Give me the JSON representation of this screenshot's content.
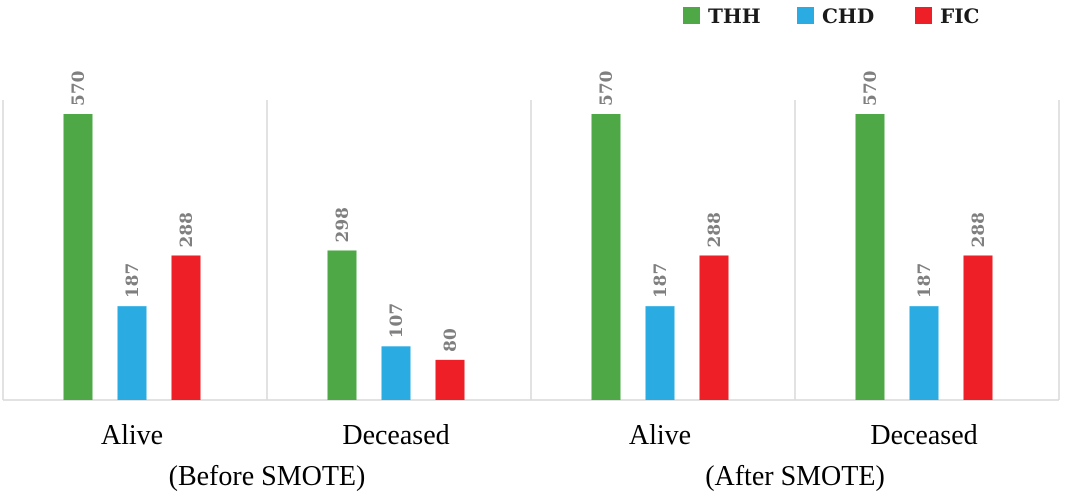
{
  "chart_data": {
    "type": "bar",
    "groups": [
      "(Before SMOTE)",
      "(After SMOTE)"
    ],
    "categories": [
      "Alive",
      "Deceased",
      "Alive",
      "Deceased"
    ],
    "category_group": [
      0,
      0,
      1,
      1
    ],
    "series": [
      {
        "name": "THH",
        "color": "#4ea846",
        "values": [
          570,
          298,
          570,
          570
        ]
      },
      {
        "name": "CHD",
        "color": "#2aace2",
        "values": [
          187,
          107,
          187,
          187
        ]
      },
      {
        "name": "FIC",
        "color": "#ee1f26",
        "values": [
          288,
          80,
          288,
          288
        ]
      }
    ],
    "ylim": [
      0,
      570
    ],
    "legend_position": "top-right",
    "grid": false,
    "value_labels": true
  }
}
